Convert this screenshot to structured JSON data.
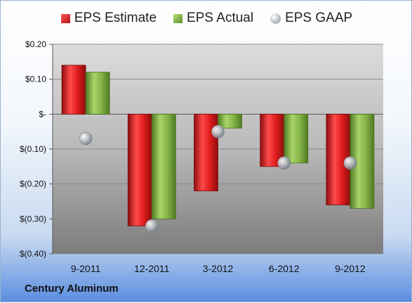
{
  "chart_data": {
    "type": "bar",
    "categories": [
      "9-2011",
      "12-2011",
      "3-2012",
      "6-2012",
      "9-2012"
    ],
    "series": [
      {
        "name": "EPS Estimate",
        "kind": "bar",
        "color": "#c41a1a",
        "values": [
          0.14,
          -0.32,
          -0.22,
          -0.15,
          -0.26
        ]
      },
      {
        "name": "EPS Actual",
        "kind": "bar",
        "color": "#7aa83a",
        "values": [
          0.12,
          -0.3,
          -0.04,
          -0.14,
          -0.27
        ]
      },
      {
        "name": "EPS GAAP",
        "kind": "marker",
        "color": "#aab1b9",
        "values": [
          -0.07,
          -0.32,
          -0.05,
          -0.14,
          -0.14
        ]
      }
    ],
    "ylim": [
      -0.4,
      0.2
    ],
    "yticks": [
      0.2,
      0.1,
      0.0,
      -0.1,
      -0.2,
      -0.3,
      -0.4
    ],
    "ytick_labels": [
      "$0.20",
      "$0.10",
      "$-",
      "$(0.10)",
      "$(0.20)",
      "$(0.30)",
      "$(0.40)"
    ],
    "grid": true,
    "legend_position": "top"
  },
  "company": "Century Aluminum"
}
